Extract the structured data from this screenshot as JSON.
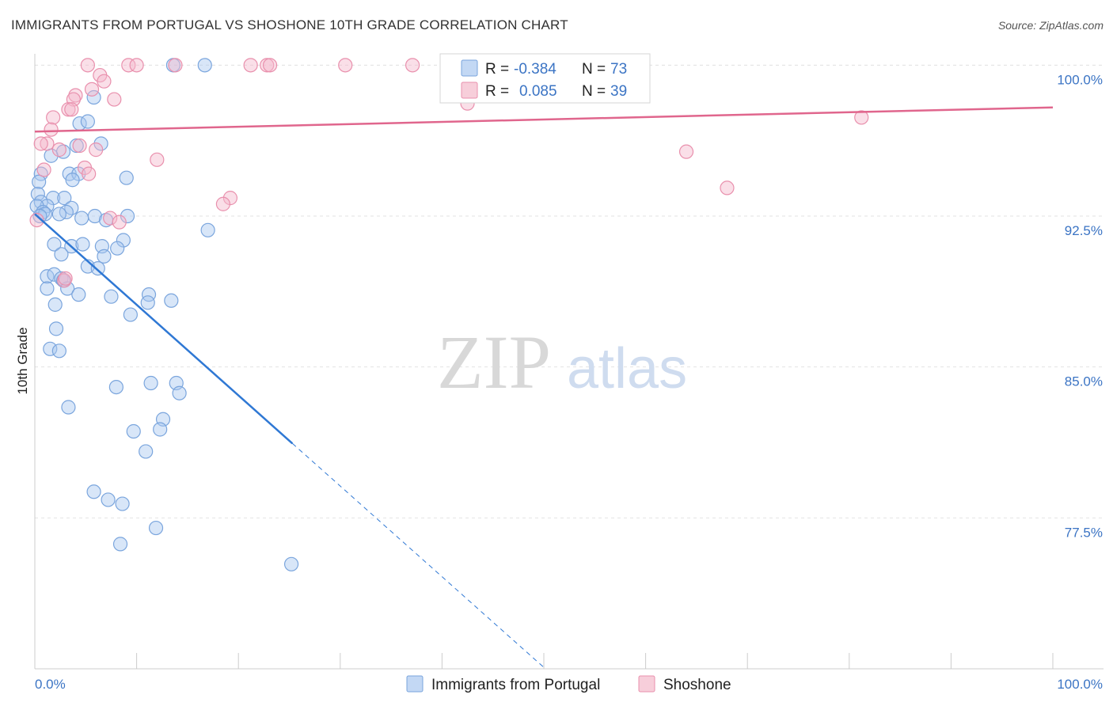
{
  "title": "IMMIGRANTS FROM PORTUGAL VS SHOSHONE 10TH GRADE CORRELATION CHART",
  "source": "Source: ZipAtlas.com",
  "watermark": {
    "zip": "ZIP",
    "atlas": "atlas"
  },
  "chart_data": {
    "type": "scatter",
    "title": "IMMIGRANTS FROM PORTUGAL VS SHOSHONE 10TH GRADE CORRELATION CHART",
    "xlabel": "",
    "ylabel": "10th Grade",
    "xlim": [
      0,
      100
    ],
    "ylim": [
      70,
      100.8
    ],
    "x_tick_labels": [
      "0.0%",
      "100.0%"
    ],
    "y_ticks": [
      77.5,
      85.0,
      92.5,
      100.0
    ],
    "y_tick_labels": [
      "77.5%",
      "85.0%",
      "92.5%",
      "100.0%"
    ],
    "grid": true,
    "legend": {
      "position": "top-center",
      "entries": [
        {
          "r_label": "R =",
          "r_value": "-0.384",
          "n_label": "N =",
          "n_value": "73"
        },
        {
          "r_label": "R =",
          "r_value": "0.085",
          "n_label": "N =",
          "n_value": "39"
        }
      ]
    },
    "series": [
      {
        "name": "Immigrants from Portugal",
        "color": "#a9c7ef",
        "stroke": "#7aa5dd",
        "trend_color": "#2f78d4",
        "trend": {
          "x0": 0,
          "y0": 92.6,
          "x1": 25.3,
          "y1": 81.2,
          "dash_to_x": 50
        },
        "points": [
          [
            13.6,
            100.0
          ],
          [
            16.7,
            100.0
          ],
          [
            5.8,
            98.4
          ],
          [
            4.4,
            97.1
          ],
          [
            5.2,
            97.2
          ],
          [
            6.5,
            96.1
          ],
          [
            4.1,
            96.0
          ],
          [
            2.8,
            95.7
          ],
          [
            1.6,
            95.5
          ],
          [
            0.6,
            94.6
          ],
          [
            3.4,
            94.6
          ],
          [
            4.3,
            94.6
          ],
          [
            3.7,
            94.3
          ],
          [
            9.0,
            94.4
          ],
          [
            0.4,
            94.2
          ],
          [
            0.3,
            93.6
          ],
          [
            1.8,
            93.4
          ],
          [
            2.9,
            93.4
          ],
          [
            0.6,
            93.2
          ],
          [
            1.2,
            93.0
          ],
          [
            0.2,
            93.0
          ],
          [
            3.6,
            92.9
          ],
          [
            0.8,
            92.7
          ],
          [
            3.1,
            92.7
          ],
          [
            1.0,
            92.6
          ],
          [
            0.5,
            92.5
          ],
          [
            5.9,
            92.5
          ],
          [
            4.6,
            92.4
          ],
          [
            9.1,
            92.5
          ],
          [
            7.0,
            92.3
          ],
          [
            17.0,
            91.8
          ],
          [
            8.7,
            91.3
          ],
          [
            1.9,
            91.1
          ],
          [
            3.6,
            91.0
          ],
          [
            4.7,
            91.1
          ],
          [
            6.6,
            91.0
          ],
          [
            8.1,
            90.9
          ],
          [
            2.6,
            90.6
          ],
          [
            6.8,
            90.5
          ],
          [
            5.2,
            90.0
          ],
          [
            6.2,
            89.9
          ],
          [
            1.2,
            89.5
          ],
          [
            1.9,
            89.6
          ],
          [
            2.6,
            89.4
          ],
          [
            2.8,
            89.3
          ],
          [
            1.2,
            88.9
          ],
          [
            3.2,
            88.9
          ],
          [
            4.3,
            88.6
          ],
          [
            7.5,
            88.5
          ],
          [
            11.2,
            88.6
          ],
          [
            11.1,
            88.2
          ],
          [
            13.4,
            88.3
          ],
          [
            2.0,
            88.1
          ],
          [
            9.4,
            87.6
          ],
          [
            2.1,
            86.9
          ],
          [
            1.5,
            85.9
          ],
          [
            2.4,
            85.8
          ],
          [
            11.4,
            84.2
          ],
          [
            13.9,
            84.2
          ],
          [
            14.2,
            83.7
          ],
          [
            8.0,
            84.0
          ],
          [
            3.3,
            83.0
          ],
          [
            12.6,
            82.4
          ],
          [
            9.7,
            81.8
          ],
          [
            12.3,
            81.9
          ],
          [
            10.9,
            80.8
          ],
          [
            5.8,
            78.8
          ],
          [
            7.2,
            78.4
          ],
          [
            8.6,
            78.2
          ],
          [
            11.9,
            77.0
          ],
          [
            8.4,
            76.2
          ],
          [
            25.2,
            75.2
          ],
          [
            2.4,
            92.6
          ]
        ]
      },
      {
        "name": "Shoshone",
        "color": "#f4b9cb",
        "stroke": "#e990ad",
        "trend_color": "#e0668d",
        "trend": {
          "x0": 0,
          "y0": 96.7,
          "x1": 100,
          "y1": 97.9
        },
        "points": [
          [
            5.2,
            100.0
          ],
          [
            9.2,
            100.0
          ],
          [
            10.0,
            100.0
          ],
          [
            13.8,
            100.0
          ],
          [
            21.2,
            100.0
          ],
          [
            22.8,
            100.0
          ],
          [
            23.1,
            100.0
          ],
          [
            30.5,
            100.0
          ],
          [
            37.1,
            100.0
          ],
          [
            6.4,
            99.5
          ],
          [
            6.8,
            99.2
          ],
          [
            5.6,
            98.8
          ],
          [
            4.0,
            98.5
          ],
          [
            3.8,
            98.3
          ],
          [
            7.8,
            98.3
          ],
          [
            42.5,
            98.1
          ],
          [
            3.3,
            97.8
          ],
          [
            3.6,
            97.8
          ],
          [
            1.8,
            97.4
          ],
          [
            81.2,
            97.4
          ],
          [
            1.6,
            96.8
          ],
          [
            1.2,
            96.1
          ],
          [
            0.6,
            96.1
          ],
          [
            4.4,
            96.0
          ],
          [
            6.0,
            95.8
          ],
          [
            2.4,
            95.8
          ],
          [
            64.0,
            95.7
          ],
          [
            12.0,
            95.3
          ],
          [
            4.9,
            94.9
          ],
          [
            0.9,
            94.8
          ],
          [
            5.3,
            94.6
          ],
          [
            68.0,
            93.9
          ],
          [
            19.2,
            93.4
          ],
          [
            18.5,
            93.1
          ],
          [
            7.4,
            92.4
          ],
          [
            8.3,
            92.2
          ],
          [
            0.2,
            92.3
          ],
          [
            2.9,
            89.3
          ],
          [
            3.0,
            89.4
          ]
        ]
      }
    ]
  }
}
